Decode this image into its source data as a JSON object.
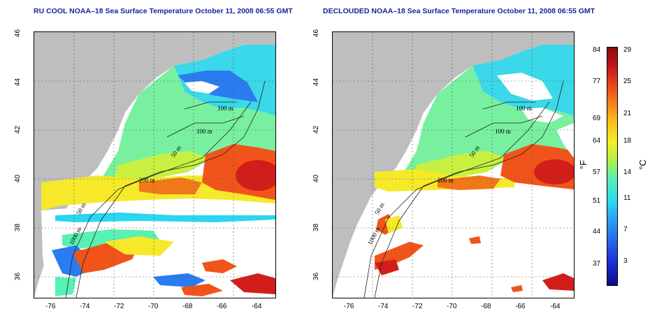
{
  "panels": [
    {
      "title": "RU COOL NOAA–18 Sea Surface Temperature October 11, 2008 06:55 GMT",
      "contours": [
        "100 m",
        "100 m",
        "50 m",
        "200 m",
        "50 m",
        "1000 m"
      ]
    },
    {
      "title": "DECLOUDED NOAA–18 Sea Surface Temperature October 11, 2008 06:55 GMT",
      "contours": [
        "100 m",
        "100 m",
        "50 m",
        "200 m",
        "50 m",
        "1000 m"
      ]
    }
  ],
  "axes": {
    "x_ticks": [
      "-76",
      "-74",
      "-72",
      "-70",
      "-68",
      "-66",
      "-64"
    ],
    "y_ticks": [
      "36",
      "38",
      "40",
      "42",
      "44",
      "46"
    ]
  },
  "colorbar": {
    "fahrenheit_ticks": [
      "84",
      "77",
      "69",
      "64",
      "57",
      "51",
      "44",
      "37"
    ],
    "celsius_ticks": [
      "29",
      "25",
      "21",
      "18",
      "14",
      "11",
      "7",
      "3"
    ],
    "unit_f": "°F",
    "unit_c": "°C",
    "colors": [
      "#0a0a8c",
      "#1b32d8",
      "#2a7cf0",
      "#2ad6f0",
      "#59f0b4",
      "#a8f04a",
      "#f5f022",
      "#f8b61a",
      "#f0541a",
      "#c8141a",
      "#8a0a0a"
    ]
  }
}
